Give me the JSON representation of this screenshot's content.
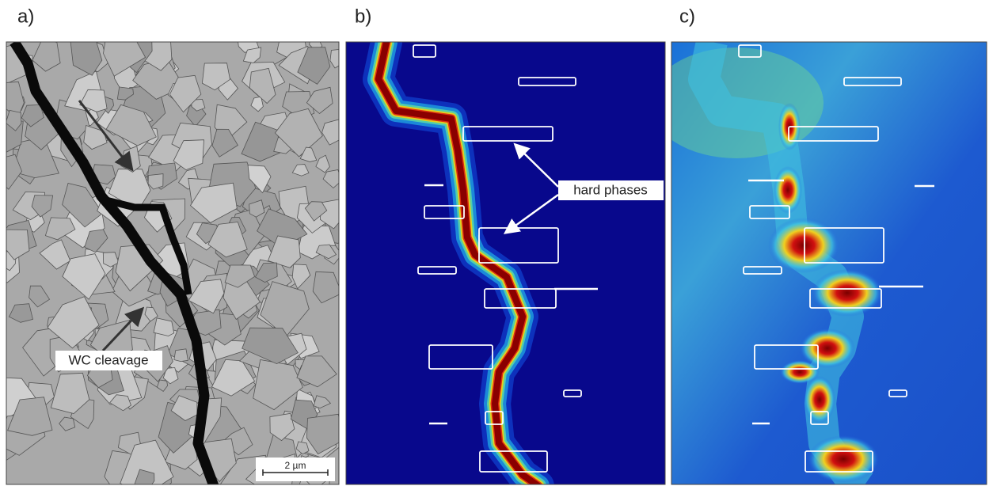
{
  "panels": [
    {
      "label": "a)",
      "annotation": "WC cleavage",
      "scale_bar": "2 µm"
    },
    {
      "label": "b)",
      "annotation": "hard phases"
    },
    {
      "label": "c)"
    }
  ]
}
